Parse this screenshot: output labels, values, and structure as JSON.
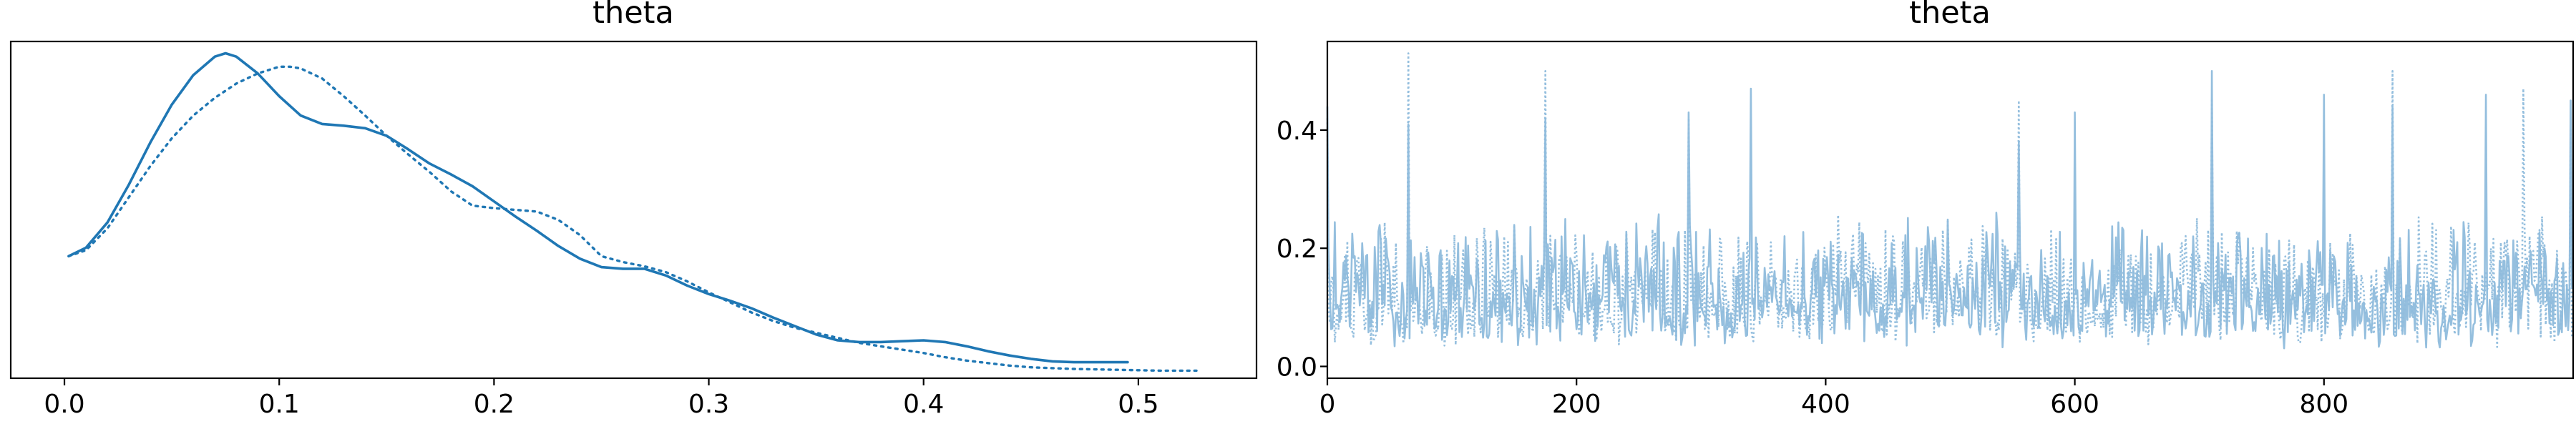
{
  "chart_data": [
    {
      "type": "line",
      "title": "theta",
      "xlabel": "",
      "ylabel": "",
      "xlim": [
        -0.025,
        0.555
      ],
      "ylim": [
        0,
        4.0
      ],
      "x_ticks": [
        "0.0",
        "0.1",
        "0.2",
        "0.3",
        "0.4",
        "0.5"
      ],
      "y_ticks": [],
      "grid": false,
      "legend": "none",
      "color": "#1f77b4",
      "series": [
        {
          "style": "solid",
          "x": [
            0.002,
            0.01,
            0.02,
            0.03,
            0.04,
            0.05,
            0.06,
            0.07,
            0.075,
            0.08,
            0.09,
            0.1,
            0.11,
            0.12,
            0.13,
            0.14,
            0.15,
            0.16,
            0.17,
            0.18,
            0.19,
            0.2,
            0.21,
            0.22,
            0.23,
            0.24,
            0.25,
            0.26,
            0.27,
            0.28,
            0.29,
            0.3,
            0.31,
            0.32,
            0.33,
            0.34,
            0.35,
            0.36,
            0.37,
            0.38,
            0.39,
            0.4,
            0.41,
            0.42,
            0.43,
            0.44,
            0.45,
            0.46,
            0.47,
            0.48,
            0.495
          ],
          "y": [
            1.45,
            1.55,
            1.85,
            2.3,
            2.8,
            3.25,
            3.6,
            3.82,
            3.86,
            3.82,
            3.62,
            3.35,
            3.12,
            3.02,
            3.0,
            2.97,
            2.88,
            2.72,
            2.55,
            2.42,
            2.28,
            2.1,
            1.92,
            1.75,
            1.57,
            1.42,
            1.32,
            1.3,
            1.3,
            1.22,
            1.1,
            1.0,
            0.92,
            0.83,
            0.72,
            0.62,
            0.52,
            0.45,
            0.43,
            0.43,
            0.44,
            0.45,
            0.43,
            0.38,
            0.32,
            0.27,
            0.23,
            0.2,
            0.19,
            0.19,
            0.19
          ]
        },
        {
          "style": "dotted",
          "x": [
            0.002,
            0.01,
            0.02,
            0.03,
            0.04,
            0.05,
            0.06,
            0.07,
            0.08,
            0.09,
            0.1,
            0.105,
            0.11,
            0.12,
            0.13,
            0.14,
            0.15,
            0.16,
            0.17,
            0.18,
            0.19,
            0.2,
            0.21,
            0.22,
            0.23,
            0.24,
            0.25,
            0.26,
            0.27,
            0.28,
            0.29,
            0.3,
            0.31,
            0.32,
            0.33,
            0.34,
            0.35,
            0.36,
            0.37,
            0.38,
            0.39,
            0.4,
            0.41,
            0.42,
            0.43,
            0.44,
            0.45,
            0.47,
            0.49,
            0.51,
            0.527
          ],
          "y": [
            1.45,
            1.52,
            1.78,
            2.15,
            2.52,
            2.85,
            3.12,
            3.33,
            3.5,
            3.62,
            3.7,
            3.7,
            3.68,
            3.56,
            3.35,
            3.12,
            2.88,
            2.66,
            2.45,
            2.22,
            2.05,
            2.02,
            2.0,
            1.98,
            1.88,
            1.7,
            1.45,
            1.38,
            1.33,
            1.26,
            1.15,
            1.02,
            0.9,
            0.78,
            0.68,
            0.6,
            0.54,
            0.48,
            0.42,
            0.38,
            0.34,
            0.3,
            0.25,
            0.21,
            0.18,
            0.15,
            0.13,
            0.11,
            0.1,
            0.09,
            0.09
          ]
        }
      ]
    },
    {
      "type": "line",
      "title": "theta",
      "xlabel": "",
      "ylabel": "",
      "xlim": [
        0,
        1000
      ],
      "ylim": [
        -0.02,
        0.55
      ],
      "x_ticks": [
        "0",
        "200",
        "400",
        "600",
        "800"
      ],
      "x_tick_values": [
        0,
        200,
        400,
        600,
        800
      ],
      "y_ticks": [
        "0.0",
        "0.2",
        "0.4"
      ],
      "y_tick_values": [
        0.0,
        0.2,
        0.4
      ],
      "grid": false,
      "legend": "none",
      "color": "#8fbcdc",
      "n_draws": 1000,
      "series": [
        {
          "style": "solid",
          "keypoints_x": [
            0,
            65,
            175,
            290,
            340,
            555,
            600,
            710,
            800,
            855,
            930,
            998
          ],
          "keypoints_y": [
            0.44,
            0.41,
            0.42,
            0.43,
            0.47,
            0.38,
            0.43,
            0.5,
            0.46,
            0.44,
            0.46,
            0.45
          ],
          "min": 0.01,
          "max": 0.5
        },
        {
          "style": "dotted",
          "keypoints_x": [
            0,
            65,
            175,
            290,
            555,
            710,
            855,
            960,
            998
          ],
          "keypoints_y": [
            0.42,
            0.53,
            0.5,
            0.42,
            0.45,
            0.45,
            0.5,
            0.47,
            0.4
          ],
          "min": 0.0,
          "max": 0.53
        }
      ]
    }
  ]
}
